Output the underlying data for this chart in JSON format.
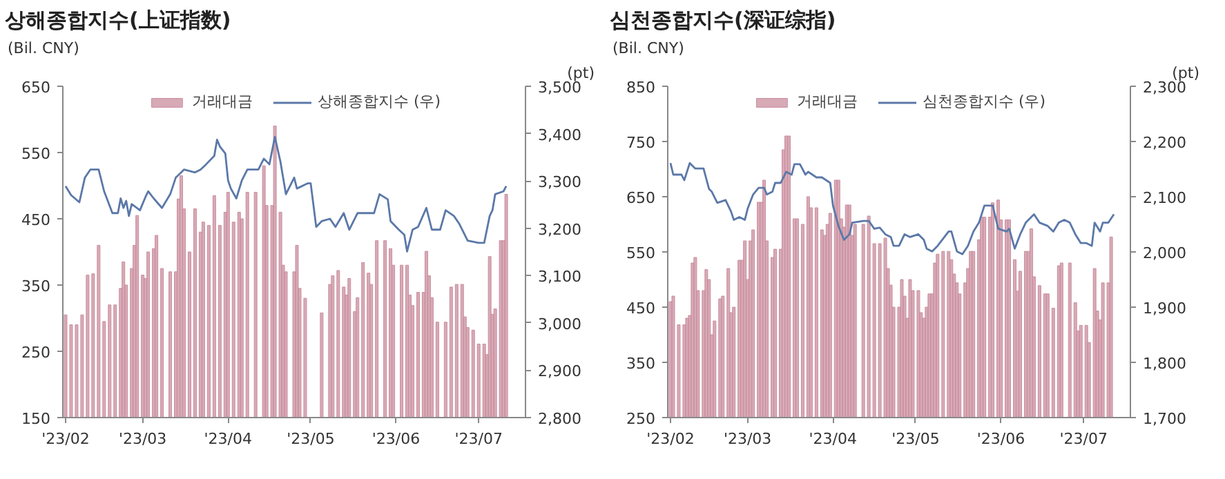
{
  "chart_data": [
    {
      "type": "bar",
      "title": "상해종합지수(上证指数)",
      "ylabel": "(Bil. CNY)",
      "y2label": "(pt)",
      "legend": "top",
      "grid": false,
      "xlim": [
        "2023-01-31",
        "2023-07-18"
      ],
      "xticks": [
        {
          "value": "2023-02-01",
          "label": "'23/02"
        },
        {
          "value": "2023-03-01",
          "label": "'23/03"
        },
        {
          "value": "2023-04-01",
          "label": "'23/04"
        },
        {
          "value": "2023-05-01",
          "label": "'23/05"
        },
        {
          "value": "2023-06-01",
          "label": "'23/06"
        },
        {
          "value": "2023-07-01",
          "label": "'23/07"
        }
      ],
      "ylim": [
        150,
        650
      ],
      "yticks": [
        150,
        250,
        350,
        450,
        550,
        650
      ],
      "y2lim": [
        2800,
        3500
      ],
      "y2ticks": [
        {
          "value": 2800,
          "label": "2,800"
        },
        {
          "value": 2900,
          "label": "2,900"
        },
        {
          "value": 3000,
          "label": "3,000"
        },
        {
          "value": 3100,
          "label": "3,100"
        },
        {
          "value": 3200,
          "label": "3,200"
        },
        {
          "value": 3300,
          "label": "3,300"
        },
        {
          "value": 3400,
          "label": "3,400"
        },
        {
          "value": 3500,
          "label": "3,500"
        }
      ],
      "series": [
        {
          "name": "거래대금",
          "color": "#c98d9e",
          "x": [
            "2023-02-01",
            "2023-02-03",
            "2023-02-05",
            "2023-02-07",
            "2023-02-09",
            "2023-02-11",
            "2023-02-13",
            "2023-02-15",
            "2023-02-17",
            "2023-02-19",
            "2023-02-21",
            "2023-02-22",
            "2023-02-23",
            "2023-02-25",
            "2023-02-26",
            "2023-02-27",
            "2023-03-01",
            "2023-03-02",
            "2023-03-03",
            "2023-03-05",
            "2023-03-06",
            "2023-03-08",
            "2023-03-11",
            "2023-03-13",
            "2023-03-14",
            "2023-03-15",
            "2023-03-16",
            "2023-03-18",
            "2023-03-20",
            "2023-03-22",
            "2023-03-23",
            "2023-03-25",
            "2023-03-27",
            "2023-03-29",
            "2023-03-31",
            "2023-04-01",
            "2023-04-03",
            "2023-04-05",
            "2023-04-06",
            "2023-04-08",
            "2023-04-11",
            "2023-04-14",
            "2023-04-15",
            "2023-04-17",
            "2023-04-18",
            "2023-04-20",
            "2023-04-21",
            "2023-04-22",
            "2023-04-25",
            "2023-04-26",
            "2023-04-27",
            "2023-04-29",
            "2023-05-05",
            "2023-05-08",
            "2023-05-09",
            "2023-05-11",
            "2023-05-13",
            "2023-05-14",
            "2023-05-15",
            "2023-05-17",
            "2023-05-18",
            "2023-05-20",
            "2023-05-22",
            "2023-05-23",
            "2023-05-25",
            "2023-05-28",
            "2023-05-30",
            "2023-05-31",
            "2023-06-03",
            "2023-06-05",
            "2023-06-06",
            "2023-06-07",
            "2023-06-09",
            "2023-06-11",
            "2023-06-12",
            "2023-06-13",
            "2023-06-14",
            "2023-06-16",
            "2023-06-19",
            "2023-06-21",
            "2023-06-23",
            "2023-06-25",
            "2023-06-26",
            "2023-06-27",
            "2023-06-29",
            "2023-07-01",
            "2023-07-03",
            "2023-07-04",
            "2023-07-05",
            "2023-07-06",
            "2023-07-07",
            "2023-07-09",
            "2023-07-10",
            "2023-07-11"
          ],
          "values": [
            305,
            290,
            290,
            305,
            365,
            367,
            410,
            295,
            320,
            320,
            345,
            385,
            350,
            375,
            410,
            455,
            365,
            360,
            400,
            405,
            425,
            375,
            370,
            370,
            480,
            515,
            465,
            400,
            465,
            430,
            445,
            440,
            485,
            440,
            460,
            490,
            445,
            460,
            450,
            490,
            490,
            530,
            470,
            470,
            590,
            460,
            380,
            370,
            370,
            410,
            345,
            330,
            308,
            351,
            364,
            372,
            347,
            335,
            360,
            310,
            331,
            384,
            368,
            351,
            417,
            417,
            405,
            380,
            380,
            380,
            335,
            319,
            339,
            339,
            401,
            364,
            331,
            294,
            294,
            347,
            351,
            351,
            302,
            286,
            282,
            261,
            261,
            245,
            393,
            306,
            314,
            417,
            417,
            487
          ]
        },
        {
          "name": "상해종합지수 (우)",
          "type": "line",
          "axis": "y2",
          "color": "#5b78a8",
          "x": [
            "2023-02-01",
            "2023-02-03",
            "2023-02-06",
            "2023-02-08",
            "2023-02-10",
            "2023-02-13",
            "2023-02-15",
            "2023-02-18",
            "2023-02-20",
            "2023-02-21",
            "2023-02-22",
            "2023-02-23",
            "2023-02-24",
            "2023-02-25",
            "2023-02-28",
            "2023-03-02",
            "2023-03-03",
            "2023-03-05",
            "2023-03-08",
            "2023-03-11",
            "2023-03-13",
            "2023-03-16",
            "2023-03-20",
            "2023-03-22",
            "2023-03-24",
            "2023-03-27",
            "2023-03-28",
            "2023-03-29",
            "2023-03-31",
            "2023-04-01",
            "2023-04-02",
            "2023-04-04",
            "2023-04-06",
            "2023-04-08",
            "2023-04-12",
            "2023-04-14",
            "2023-04-16",
            "2023-04-18",
            "2023-04-20",
            "2023-04-22",
            "2023-04-25",
            "2023-04-26",
            "2023-04-30",
            "2023-05-01",
            "2023-05-03",
            "2023-05-05",
            "2023-05-08",
            "2023-05-10",
            "2023-05-13",
            "2023-05-15",
            "2023-05-18",
            "2023-05-24",
            "2023-05-26",
            "2023-05-29",
            "2023-05-30",
            "2023-06-02",
            "2023-06-04",
            "2023-06-05",
            "2023-06-07",
            "2023-06-09",
            "2023-06-12",
            "2023-06-14",
            "2023-06-17",
            "2023-06-19",
            "2023-06-22",
            "2023-06-24",
            "2023-06-27",
            "2023-07-01",
            "2023-07-03",
            "2023-07-05",
            "2023-07-06",
            "2023-07-07",
            "2023-07-10",
            "2023-07-11"
          ],
          "values": [
            3289,
            3270,
            3255,
            3307,
            3324,
            3324,
            3278,
            3232,
            3232,
            3263,
            3243,
            3258,
            3226,
            3251,
            3238,
            3266,
            3278,
            3263,
            3243,
            3272,
            3307,
            3324,
            3318,
            3324,
            3335,
            3353,
            3387,
            3373,
            3358,
            3301,
            3284,
            3263,
            3301,
            3324,
            3324,
            3347,
            3335,
            3393,
            3341,
            3272,
            3307,
            3284,
            3295,
            3295,
            3203,
            3215,
            3220,
            3203,
            3232,
            3197,
            3232,
            3232,
            3272,
            3261,
            3215,
            3197,
            3186,
            3151,
            3197,
            3203,
            3243,
            3197,
            3197,
            3238,
            3226,
            3209,
            3174,
            3169,
            3169,
            3226,
            3238,
            3272,
            3278,
            3289
          ]
        }
      ]
    },
    {
      "type": "bar",
      "title": "심천종합지수(深证综指)",
      "ylabel": "(Bil. CNY)",
      "y2label": "(pt)",
      "legend": "top",
      "grid": false,
      "xlim": [
        "2023-01-31",
        "2023-07-18"
      ],
      "xticks": [
        {
          "value": "2023-02-01",
          "label": "'23/02"
        },
        {
          "value": "2023-03-01",
          "label": "'23/03"
        },
        {
          "value": "2023-04-01",
          "label": "'23/04"
        },
        {
          "value": "2023-05-01",
          "label": "'23/05"
        },
        {
          "value": "2023-06-01",
          "label": "'23/06"
        },
        {
          "value": "2023-07-01",
          "label": "'23/07"
        }
      ],
      "ylim": [
        250,
        850
      ],
      "yticks": [
        250,
        350,
        450,
        550,
        650,
        750,
        850
      ],
      "y2lim": [
        1700,
        2300
      ],
      "y2ticks": [
        {
          "value": 1700,
          "label": "1,700"
        },
        {
          "value": 1800,
          "label": "1,800"
        },
        {
          "value": 1900,
          "label": "1,900"
        },
        {
          "value": 2000,
          "label": "2,000"
        },
        {
          "value": 2100,
          "label": "2,100"
        },
        {
          "value": 2200,
          "label": "2,200"
        },
        {
          "value": 2300,
          "label": "2,300"
        }
      ],
      "series": [
        {
          "name": "거래대금",
          "color": "#c98d9e",
          "x": [
            "2023-02-01",
            "2023-02-02",
            "2023-02-04",
            "2023-02-06",
            "2023-02-07",
            "2023-02-08",
            "2023-02-09",
            "2023-02-10",
            "2023-02-11",
            "2023-02-13",
            "2023-02-14",
            "2023-02-15",
            "2023-02-16",
            "2023-02-17",
            "2023-02-19",
            "2023-02-20",
            "2023-02-22",
            "2023-02-23",
            "2023-02-24",
            "2023-02-26",
            "2023-02-27",
            "2023-02-28",
            "2023-03-01",
            "2023-03-02",
            "2023-03-03",
            "2023-03-05",
            "2023-03-06",
            "2023-03-07",
            "2023-03-08",
            "2023-03-10",
            "2023-03-11",
            "2023-03-13",
            "2023-03-14",
            "2023-03-15",
            "2023-03-16",
            "2023-03-18",
            "2023-03-19",
            "2023-03-21",
            "2023-03-23",
            "2023-03-24",
            "2023-03-26",
            "2023-03-28",
            "2023-03-29",
            "2023-03-30",
            "2023-03-31",
            "2023-04-02",
            "2023-04-03",
            "2023-04-04",
            "2023-04-05",
            "2023-04-06",
            "2023-04-07",
            "2023-04-08",
            "2023-04-09",
            "2023-04-12",
            "2023-04-14",
            "2023-04-16",
            "2023-04-18",
            "2023-04-20",
            "2023-04-21",
            "2023-04-22",
            "2023-04-23",
            "2023-04-25",
            "2023-04-26",
            "2023-04-27",
            "2023-04-28",
            "2023-04-29",
            "2023-04-30",
            "2023-05-02",
            "2023-05-03",
            "2023-05-04",
            "2023-05-05",
            "2023-05-06",
            "2023-05-07",
            "2023-05-08",
            "2023-05-09",
            "2023-05-11",
            "2023-05-13",
            "2023-05-14",
            "2023-05-15",
            "2023-05-16",
            "2023-05-17",
            "2023-05-19",
            "2023-05-20",
            "2023-05-21",
            "2023-05-22",
            "2023-05-24",
            "2023-05-25",
            "2023-05-26",
            "2023-05-28",
            "2023-05-29",
            "2023-05-31",
            "2023-06-01",
            "2023-06-03",
            "2023-06-04",
            "2023-06-06",
            "2023-06-07",
            "2023-06-08",
            "2023-06-10",
            "2023-06-11",
            "2023-06-12",
            "2023-06-13",
            "2023-06-15",
            "2023-06-17",
            "2023-06-18",
            "2023-06-20",
            "2023-06-22",
            "2023-06-23",
            "2023-06-26",
            "2023-06-28",
            "2023-06-29",
            "2023-06-30",
            "2023-07-02",
            "2023-07-03",
            "2023-07-05",
            "2023-07-06",
            "2023-07-07",
            "2023-07-08",
            "2023-07-10",
            "2023-07-11"
          ],
          "values": [
            460,
            470,
            418,
            418,
            430,
            435,
            530,
            540,
            480,
            480,
            518,
            500,
            400,
            425,
            465,
            470,
            520,
            440,
            450,
            535,
            535,
            570,
            500,
            570,
            590,
            640,
            640,
            680,
            570,
            540,
            555,
            555,
            735,
            760,
            760,
            610,
            610,
            600,
            650,
            630,
            630,
            590,
            580,
            600,
            620,
            680,
            680,
            610,
            595,
            635,
            635,
            580,
            600,
            600,
            615,
            565,
            565,
            575,
            520,
            490,
            450,
            450,
            500,
            470,
            430,
            500,
            480,
            480,
            440,
            430,
            450,
            474,
            474,
            530,
            546,
            551,
            551,
            536,
            510,
            494,
            474,
            494,
            520,
            551,
            551,
            572,
            613,
            613,
            613,
            639,
            644,
            608,
            608,
            608,
            536,
            479,
            515,
            551,
            551,
            592,
            505,
            489,
            474,
            474,
            448,
            525,
            530,
            530,
            458,
            407,
            417,
            417,
            386,
            520,
            443,
            427,
            494,
            494,
            577
          ]
        },
        {
          "name": "심천종합지수 (우)",
          "type": "line",
          "axis": "y2",
          "color": "#5b78a8",
          "x": [
            "2023-02-01",
            "2023-02-02",
            "2023-02-05",
            "2023-02-06",
            "2023-02-08",
            "2023-02-10",
            "2023-02-13",
            "2023-02-15",
            "2023-02-16",
            "2023-02-18",
            "2023-02-21",
            "2023-02-23",
            "2023-02-24",
            "2023-02-26",
            "2023-02-28",
            "2023-03-01",
            "2023-03-03",
            "2023-03-05",
            "2023-03-07",
            "2023-03-08",
            "2023-03-10",
            "2023-03-11",
            "2023-03-13",
            "2023-03-15",
            "2023-03-17",
            "2023-03-18",
            "2023-03-20",
            "2023-03-22",
            "2023-03-23",
            "2023-03-26",
            "2023-03-28",
            "2023-03-31",
            "2023-04-01",
            "2023-04-03",
            "2023-04-05",
            "2023-04-07",
            "2023-04-08",
            "2023-04-12",
            "2023-04-14",
            "2023-04-16",
            "2023-04-18",
            "2023-04-20",
            "2023-04-22",
            "2023-04-23",
            "2023-04-25",
            "2023-04-27",
            "2023-04-29",
            "2023-05-02",
            "2023-05-04",
            "2023-05-05",
            "2023-05-07",
            "2023-05-09",
            "2023-05-13",
            "2023-05-14",
            "2023-05-16",
            "2023-05-18",
            "2023-05-20",
            "2023-05-22",
            "2023-05-24",
            "2023-05-26",
            "2023-05-29",
            "2023-05-31",
            "2023-06-03",
            "2023-06-04",
            "2023-06-06",
            "2023-06-08",
            "2023-06-10",
            "2023-06-13",
            "2023-06-15",
            "2023-06-18",
            "2023-06-20",
            "2023-06-22",
            "2023-06-24",
            "2023-06-26",
            "2023-06-28",
            "2023-06-30",
            "2023-07-02",
            "2023-07-04",
            "2023-07-05",
            "2023-07-07",
            "2023-07-08",
            "2023-07-10",
            "2023-07-12"
          ],
          "values": [
            2161,
            2140,
            2140,
            2130,
            2161,
            2151,
            2151,
            2114,
            2109,
            2089,
            2094,
            2073,
            2058,
            2063,
            2058,
            2078,
            2104,
            2116,
            2116,
            2104,
            2109,
            2125,
            2125,
            2145,
            2140,
            2159,
            2159,
            2140,
            2145,
            2135,
            2135,
            2125,
            2084,
            2047,
            2022,
            2032,
            2053,
            2056,
            2056,
            2042,
            2044,
            2032,
            2027,
            2011,
            2011,
            2032,
            2027,
            2032,
            2022,
            2006,
            2001,
            2011,
            2037,
            2037,
            2001,
            1996,
            2011,
            2037,
            2053,
            2084,
            2084,
            2042,
            2037,
            2042,
            2006,
            2032,
            2053,
            2068,
            2053,
            2047,
            2037,
            2053,
            2058,
            2053,
            2032,
            2016,
            2016,
            2011,
            2053,
            2037,
            2053,
            2053,
            2068
          ]
        }
      ]
    }
  ]
}
